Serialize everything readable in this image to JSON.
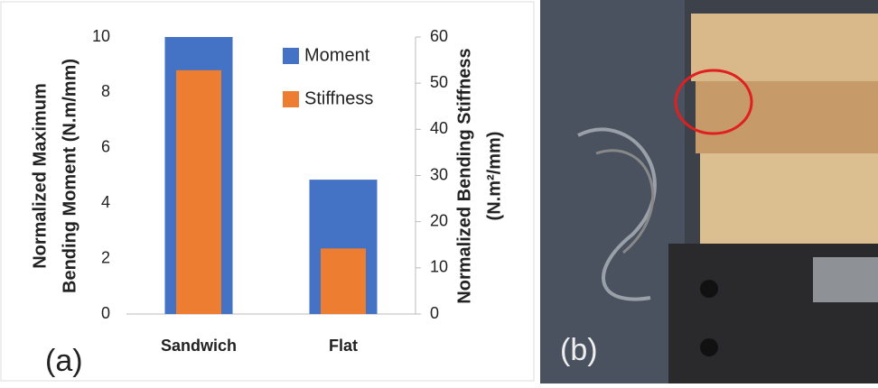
{
  "chart_data": {
    "type": "bar",
    "y_label": [
      "Normalized Maximum",
      "Bending Moment  (N.m/mm)"
    ],
    "y2_label": [
      "Normalized Bending Stiffness",
      "(N.m²/mm)"
    ],
    "categories": [
      "Sandwich",
      "Flat"
    ],
    "series": [
      {
        "name": "Moment",
        "color": "#4472c4",
        "values": [
          10,
          4.85
        ]
      },
      {
        "name": "Stiffness",
        "color": "#ed7d31",
        "values": [
          52.8,
          14.2
        ],
        "axis": "y2"
      }
    ],
    "ylim": [
      0,
      10
    ],
    "yticks": [
      0,
      2,
      4,
      6,
      8,
      10
    ],
    "y2lim": [
      0,
      60
    ],
    "y2ticks": [
      0,
      10,
      20,
      30,
      40,
      50,
      60
    ],
    "legend": "upper-right",
    "annotations": [
      "(a)",
      "(b)"
    ]
  }
}
